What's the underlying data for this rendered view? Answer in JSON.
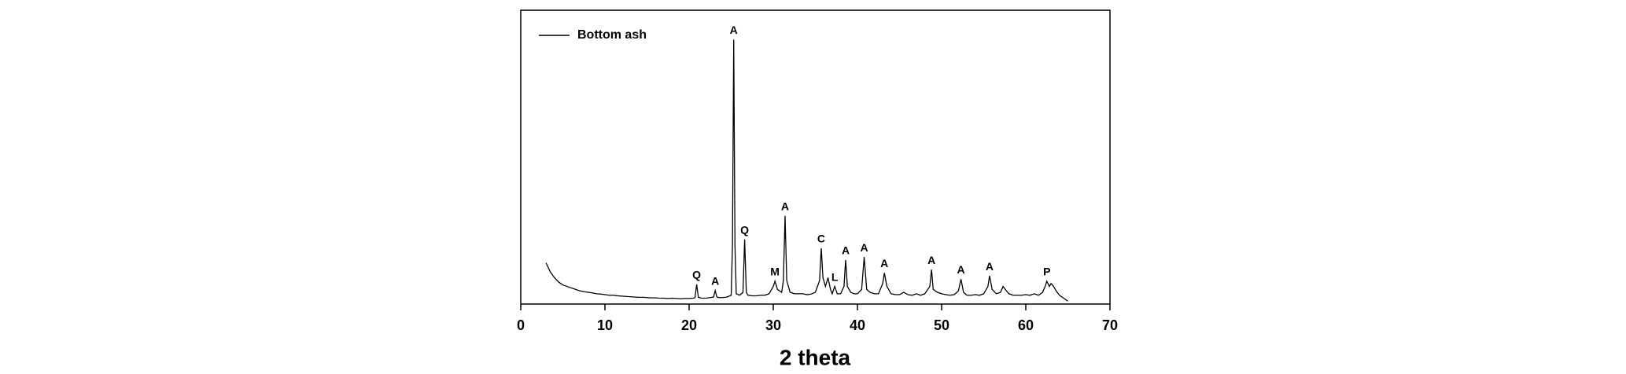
{
  "chart_data": {
    "type": "line",
    "xlabel": "2 theta",
    "xlim": [
      0,
      70
    ],
    "xticks": [
      0,
      10,
      20,
      30,
      40,
      50,
      60,
      70
    ],
    "ylim": [
      0,
      100
    ],
    "legend": "top-left",
    "series": [
      {
        "name": "Bottom ash",
        "color": "#000000",
        "x": [
          3,
          3.5,
          4,
          4.5,
          5,
          5.5,
          6,
          6.5,
          7,
          7.5,
          8,
          8.5,
          9,
          9.5,
          10,
          10.5,
          11,
          11.5,
          12,
          12.5,
          13,
          13.5,
          14,
          14.5,
          15,
          15.5,
          16,
          16.5,
          17,
          17.5,
          18,
          18.5,
          19,
          19.5,
          20,
          20.5,
          20.7,
          20.9,
          21.1,
          21.5,
          22,
          22.5,
          22.9,
          23.1,
          23.3,
          23.5,
          24,
          24.5,
          25,
          25.15,
          25.3,
          25.45,
          25.6,
          26,
          26.4,
          26.6,
          26.8,
          27,
          27.5,
          28,
          28.5,
          29,
          29.5,
          30,
          30.2,
          30.5,
          31,
          31.2,
          31.4,
          31.6,
          32,
          32.5,
          33,
          33.5,
          34,
          34.5,
          35,
          35.5,
          35.7,
          35.9,
          36.2,
          36.5,
          36.8,
          37,
          37.3,
          37.6,
          38,
          38.4,
          38.6,
          38.8,
          39.2,
          39.6,
          40,
          40.5,
          40.8,
          41.1,
          41.5,
          42,
          42.5,
          43,
          43.2,
          43.5,
          44,
          44.5,
          45,
          45.5,
          46,
          46.5,
          47,
          47.5,
          48,
          48.6,
          48.8,
          49,
          49.5,
          50,
          50.5,
          51,
          51.5,
          52,
          52.3,
          52.6,
          53,
          53.5,
          54,
          54.5,
          55,
          55.5,
          55.7,
          56,
          56.5,
          57,
          57.3,
          57.7,
          58,
          58.5,
          59,
          59.5,
          60,
          60.5,
          61,
          61.5,
          62,
          62.3,
          62.5,
          62.8,
          63,
          63.3,
          63.6,
          64,
          64.5,
          65
        ],
        "values": [
          14,
          11,
          9,
          7.5,
          6.5,
          6,
          5.5,
          5,
          4.5,
          4.2,
          4,
          3.8,
          3.5,
          3.4,
          3.2,
          3,
          3,
          2.8,
          2.7,
          2.6,
          2.5,
          2.4,
          2.3,
          2.3,
          2.2,
          2.1,
          2.1,
          2,
          2,
          1.9,
          2,
          1.9,
          1.8,
          1.9,
          1.9,
          2,
          2.2,
          6.7,
          2.3,
          2,
          2,
          2.2,
          2.4,
          4.6,
          2.4,
          2.2,
          2.2,
          2.4,
          3,
          20,
          90,
          20,
          3.5,
          3,
          4,
          22,
          4,
          3,
          2.8,
          2.8,
          3,
          3,
          3.5,
          6,
          7.8,
          5,
          4,
          8,
          30,
          8,
          4,
          3.5,
          3.5,
          3.5,
          3.2,
          3.4,
          4,
          8,
          19,
          9,
          6,
          9,
          5,
          3.5,
          6,
          3.5,
          3.5,
          6,
          15,
          6,
          4,
          3.5,
          3.5,
          5,
          16,
          5,
          4,
          3.5,
          3.5,
          7,
          10.6,
          6,
          3.5,
          3.2,
          3.2,
          4,
          3.2,
          3,
          3.5,
          3,
          3.5,
          6,
          11.7,
          5,
          4,
          3.5,
          3.2,
          3,
          3.2,
          4.5,
          8.5,
          4,
          3,
          3,
          3.2,
          3,
          3.5,
          6,
          9.6,
          5,
          3.5,
          4,
          6,
          4.5,
          3.5,
          3,
          3,
          3,
          3.2,
          3,
          3.5,
          3,
          4,
          6,
          7.8,
          6,
          7,
          6,
          4.5,
          3,
          2,
          1
        ]
      }
    ],
    "annotations": [
      {
        "text": "Q",
        "x": 20.9
      },
      {
        "text": "A",
        "x": 23.1
      },
      {
        "text": "A",
        "x": 25.3
      },
      {
        "text": "Q",
        "x": 26.6
      },
      {
        "text": "M",
        "x": 30.2
      },
      {
        "text": "A",
        "x": 31.4
      },
      {
        "text": "C",
        "x": 35.7
      },
      {
        "text": "L",
        "x": 37.3
      },
      {
        "text": "A",
        "x": 38.6
      },
      {
        "text": "A",
        "x": 40.8
      },
      {
        "text": "A",
        "x": 43.2
      },
      {
        "text": "A",
        "x": 48.8
      },
      {
        "text": "A",
        "x": 52.3
      },
      {
        "text": "A",
        "x": 55.7
      },
      {
        "text": "P",
        "x": 62.5
      }
    ]
  }
}
